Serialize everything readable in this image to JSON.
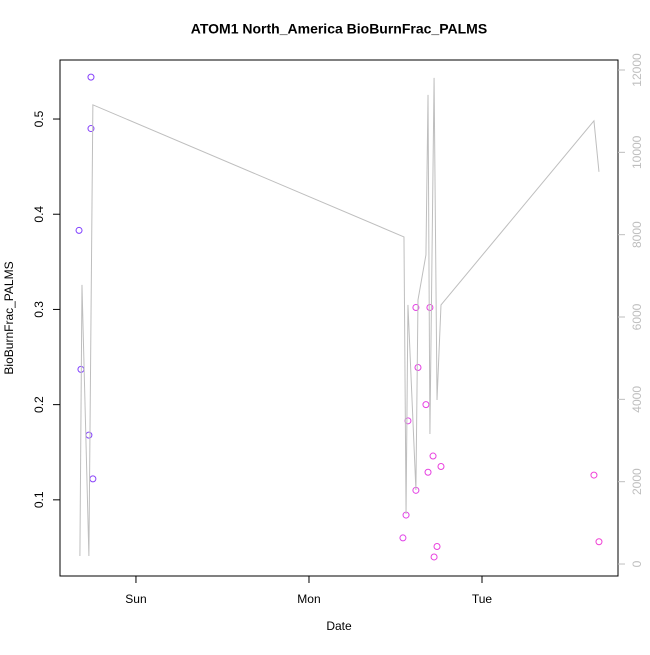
{
  "chart_data": {
    "type": "scatter",
    "title": "ATOM1 North_America BioBurnFrac_PALMS",
    "xlabel": "Date",
    "ylabel": "BioBurnFrac_PALMS",
    "xlim": [
      -0.439,
      2.786
    ],
    "xticks": [
      {
        "value": 0,
        "label": "Sun"
      },
      {
        "value": 1,
        "label": "Mon"
      },
      {
        "value": 2,
        "label": "Tue"
      }
    ],
    "ylim": [
      0.02,
      0.562
    ],
    "yticks": [
      0.1,
      0.2,
      0.3,
      0.4,
      0.5
    ],
    "y2lim": [
      -291,
      12243
    ],
    "y2ticks": [
      0,
      2000,
      4000,
      6000,
      8000,
      10000,
      12000
    ],
    "y2color": "#bebebe",
    "series": [
      {
        "kind": "points",
        "x": [
          -0.329,
          -0.318,
          -0.272,
          -0.26,
          -0.26,
          -0.249,
          1.543,
          1.561,
          1.572,
          1.618,
          1.618,
          1.63,
          1.676,
          1.688,
          1.699,
          1.717,
          1.723,
          1.74,
          1.763,
          2.647,
          2.676
        ],
        "values": [
          0.383,
          0.237,
          0.168,
          0.49,
          0.544,
          0.122,
          0.06,
          0.084,
          0.183,
          0.11,
          0.302,
          0.239,
          0.2,
          0.129,
          0.302,
          0.146,
          0.04,
          0.051,
          0.135,
          0.126,
          0.056
        ],
        "colors": [
          "#7f3fff",
          "#8040ff",
          "#8440fc",
          "#8640fb",
          "#8640fb",
          "#8840fa",
          "#e040e8",
          "#e240e7",
          "#e240e6",
          "#e440e4",
          "#e440e4",
          "#e440e3",
          "#e640e2",
          "#e640e1",
          "#e840e0",
          "#e840df",
          "#e840df",
          "#ea40de",
          "#ea40dd",
          "#f040d6",
          "#f040d5"
        ]
      },
      {
        "kind": "line",
        "axis": "y2",
        "color": "#bebebe",
        "x": [
          -0.324,
          -0.312,
          -0.272,
          -0.249,
          1.549,
          1.561,
          1.572,
          1.618,
          1.63,
          1.676,
          1.688,
          1.699,
          1.723,
          1.74,
          1.763,
          2.647,
          2.676
        ],
        "values": [
          194,
          6780,
          194,
          11154,
          7946,
          1215,
          6294,
          1798,
          6415,
          7509,
          11397,
          3159,
          11810,
          3985,
          6294,
          10766,
          9526
        ]
      }
    ]
  }
}
